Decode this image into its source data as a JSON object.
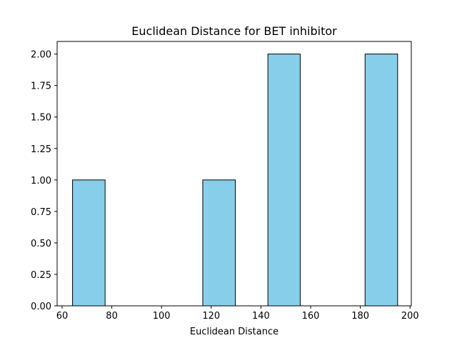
{
  "chart_data": {
    "type": "bar",
    "title": "Euclidean Distance for BET inhibitor",
    "xlabel": "Euclidean Distance",
    "ylabel": "",
    "xlim": [
      58.0,
      200.5
    ],
    "ylim": [
      0,
      2.1
    ],
    "xticks": [
      "60",
      "80",
      "100",
      "120",
      "140",
      "160",
      "180",
      "200"
    ],
    "yticks": [
      "0.00",
      "0.25",
      "0.50",
      "0.75",
      "1.00",
      "1.25",
      "1.50",
      "1.75",
      "2.00"
    ],
    "bins": [
      {
        "x0": 64.2,
        "x1": 77.3,
        "value": 1
      },
      {
        "x0": 116.6,
        "x1": 129.7,
        "value": 1
      },
      {
        "x0": 142.8,
        "x1": 155.8,
        "value": 2
      },
      {
        "x0": 181.9,
        "x1": 195.0,
        "value": 2
      }
    ],
    "grid": false,
    "colors": {
      "bar_fill": "#87ceeb",
      "bar_edge": "#000000",
      "axes": "#000000"
    }
  }
}
